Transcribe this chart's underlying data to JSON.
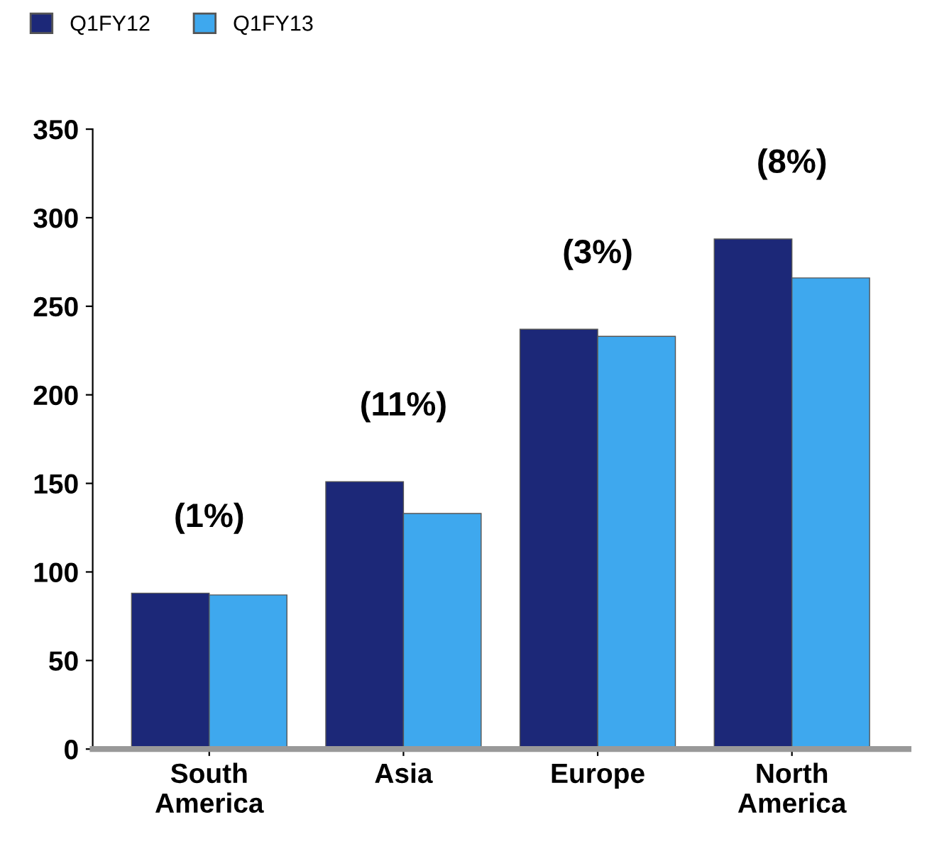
{
  "chart_data": {
    "type": "bar",
    "categories": [
      "South\nAmerica",
      "Asia",
      "Europe",
      "North\nAmerica"
    ],
    "series": [
      {
        "name": "Q1FY12",
        "color": "#1c2878",
        "values": [
          88,
          151,
          237,
          288
        ]
      },
      {
        "name": "Q1FY13",
        "color": "#3ea8ee",
        "values": [
          87,
          133,
          233,
          266
        ]
      }
    ],
    "ylim": [
      0,
      350
    ],
    "yticks": [
      0,
      50,
      100,
      150,
      200,
      250,
      300,
      350
    ],
    "grid": false,
    "legend": "top left",
    "annotations": [
      "(1%)",
      "(11%)",
      "(3%)",
      "(8%)"
    ]
  }
}
